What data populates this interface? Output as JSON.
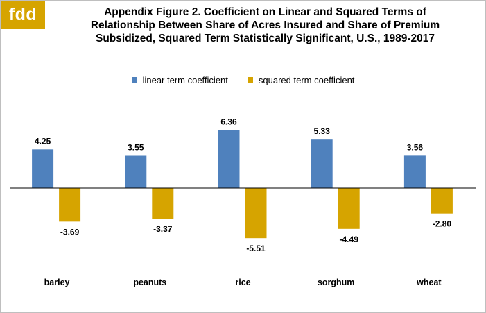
{
  "logo": {
    "text": "fdd",
    "color": "#d6a400"
  },
  "title_lines": [
    "Appendix Figure 2.  Coefficient on Linear and Squared Terms of",
    "Relationship Between Share of Acres Insured and Share of Premium",
    "Subsidized, Squared Term Statistically  Significant, U.S., 1989-2017"
  ],
  "chart_data": {
    "type": "bar",
    "title": "Appendix Figure 2.  Coefficient on Linear and Squared Terms of Relationship Between Share of Acres Insured and Share of Premium Subsidized, Squared Term Statistically  Significant, U.S., 1989-2017",
    "categories": [
      "barley",
      "peanuts",
      "rice",
      "sorghum",
      "wheat"
    ],
    "series": [
      {
        "name": "linear term coefficient",
        "values": [
          4.25,
          3.55,
          6.36,
          5.33,
          3.56
        ],
        "color": "#4f81bd"
      },
      {
        "name": "squared term coefficient",
        "values": [
          -3.69,
          -3.37,
          -5.51,
          -4.49,
          -2.8
        ],
        "color": "#d6a400"
      }
    ],
    "data_labels": [
      [
        "4.25",
        "3.55",
        "6.36",
        "5.33",
        "3.56"
      ],
      [
        "-3.69",
        "-3.37",
        "-5.51",
        "-4.49",
        "-2.80"
      ]
    ],
    "xlabel": "",
    "ylabel": "",
    "ylim": [
      -6.5,
      7.0
    ],
    "grid": false,
    "legend_position": "top-center"
  }
}
